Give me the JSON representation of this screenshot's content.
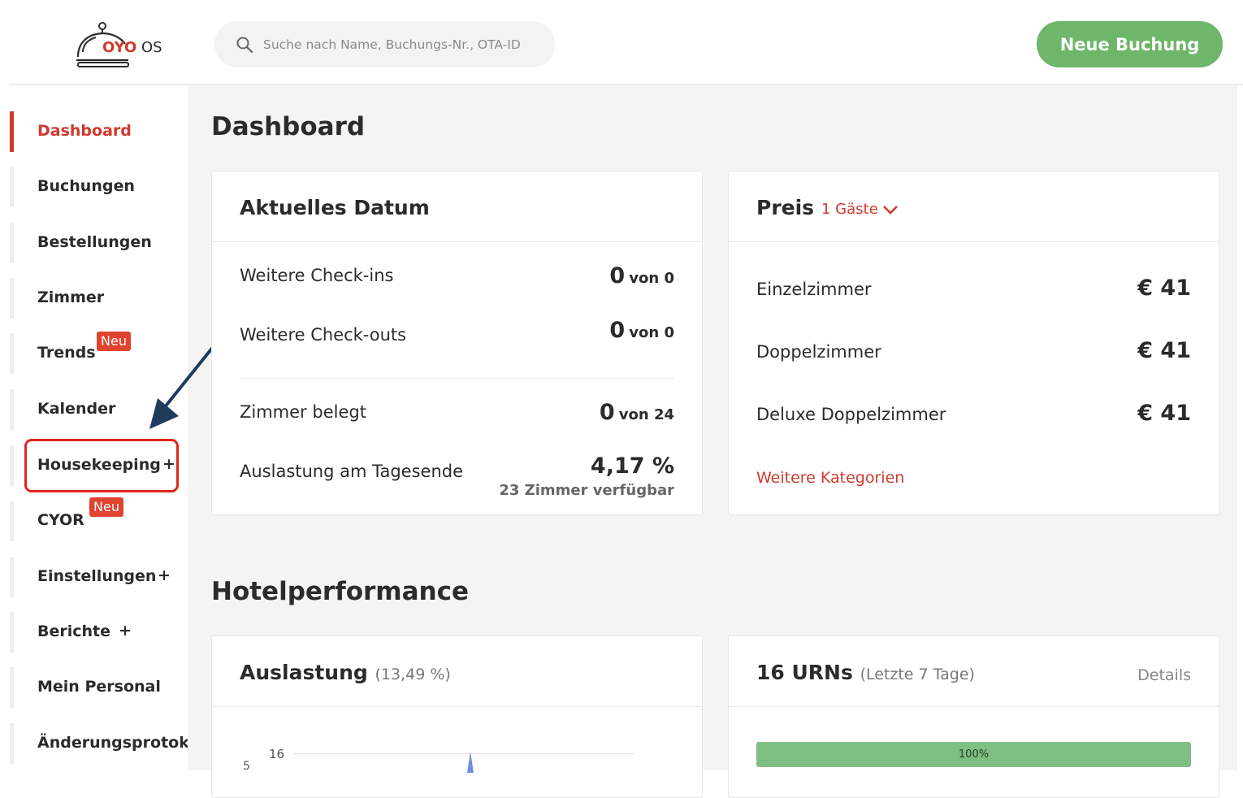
{
  "brand": {
    "name": "OYO",
    "suffix": "OS"
  },
  "search": {
    "placeholder": "Suche nach Name, Buchungs-Nr., OTA-ID"
  },
  "header": {
    "new_booking_label": "Neue Buchung"
  },
  "sidebar": {
    "items": [
      {
        "label": "Dashboard",
        "active": true
      },
      {
        "label": "Buchungen"
      },
      {
        "label": "Bestellungen"
      },
      {
        "label": "Zimmer"
      },
      {
        "label": "Trends",
        "badge": "Neu"
      },
      {
        "label": "Kalender"
      },
      {
        "label": "Housekeeping",
        "expand": "+"
      },
      {
        "label": "CYOR",
        "badge": "Neu"
      },
      {
        "label": "Einstellungen",
        "expand": "+"
      },
      {
        "label": "Berichte",
        "expand": "+"
      },
      {
        "label": "Mein Personal"
      },
      {
        "label": "Änderungsprotokoll"
      }
    ]
  },
  "main": {
    "title": "Dashboard",
    "current_date_card": {
      "title": "Aktuelles Datum",
      "rows": [
        {
          "label": "Weitere Check-ins",
          "value": "0",
          "of": "von 0"
        },
        {
          "label": "Weitere Check-outs",
          "value": "0",
          "of": "von 0"
        },
        {
          "label": "Zimmer belegt",
          "value": "0",
          "of": "von 24"
        },
        {
          "label": "Auslastung am Tagesende",
          "value": "4,17 %",
          "sub": "23 Zimmer verfügbar"
        }
      ]
    },
    "price_card": {
      "title": "Preis",
      "guests_dropdown": "1 Gäste",
      "rows": [
        {
          "label": "Einzelzimmer",
          "value": "€ 41"
        },
        {
          "label": "Doppelzimmer",
          "value": "€ 41"
        },
        {
          "label": "Deluxe Doppelzimmer",
          "value": "€ 41"
        }
      ],
      "more_link": "Weitere Kategorien"
    },
    "performance_title": "Hotelperformance",
    "occupancy_card": {
      "title": "Auslastung",
      "subtitle": "(13,49 %)",
      "chart_tick": "16",
      "chart_ylabel": "5"
    },
    "urn_card": {
      "title": "16 URNs",
      "subtitle": "(Letzte 7 Tage)",
      "details": "Details",
      "progress_label": "100%",
      "progress_value": 1.0
    }
  },
  "colors": {
    "accent": "#d0392d",
    "primary_button": "#6db66a",
    "progress": "#7fbf84",
    "highlight": "#e0251e"
  }
}
